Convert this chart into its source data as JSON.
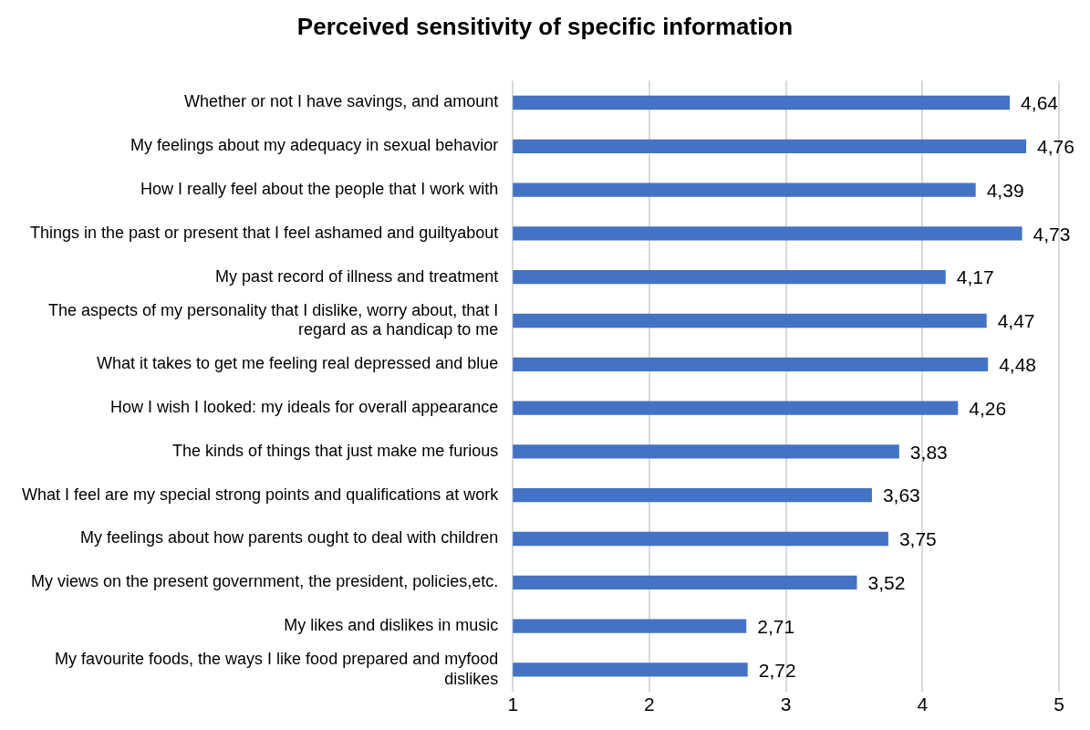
{
  "chart_data": {
    "type": "bar",
    "orientation": "horizontal",
    "title": "Perceived sensitivity of specific information",
    "categories": [
      "Whether or not I have savings, and amount",
      "My feelings about my adequacy in sexual behavior",
      "How I really feel about the people that I work with",
      "Things in the past or present that I feel ashamed and guiltyabout",
      "My past record of illness and treatment",
      "The aspects of my personality that I dislike, worry about, that I regard as a handicap to me",
      "What it takes to get me feeling real depressed and blue",
      "How I wish I looked: my ideals for overall appearance",
      "The kinds of things that just make me furious",
      "What I feel are my special strong points and qualifications at work",
      "My feelings about how parents ought to deal with children",
      "My views on the present government, the president, policies,etc.",
      "My likes and dislikes in music",
      "My favourite foods, the ways I like food prepared and myfood dislikes"
    ],
    "values": [
      4.64,
      4.76,
      4.39,
      4.73,
      4.17,
      4.47,
      4.48,
      4.26,
      3.83,
      3.63,
      3.75,
      3.52,
      2.71,
      2.72
    ],
    "value_labels": [
      "4,64",
      "4,76",
      "4,39",
      "4,73",
      "4,17",
      "4,47",
      "4,48",
      "4,26",
      "3,83",
      "3,63",
      "3,75",
      "3,52",
      "2,71",
      "2,72"
    ],
    "color": "#4472c4",
    "xlim": [
      1,
      5
    ],
    "xticks": [
      1,
      2,
      3,
      4,
      5
    ],
    "grid": "x",
    "legend": false
  }
}
